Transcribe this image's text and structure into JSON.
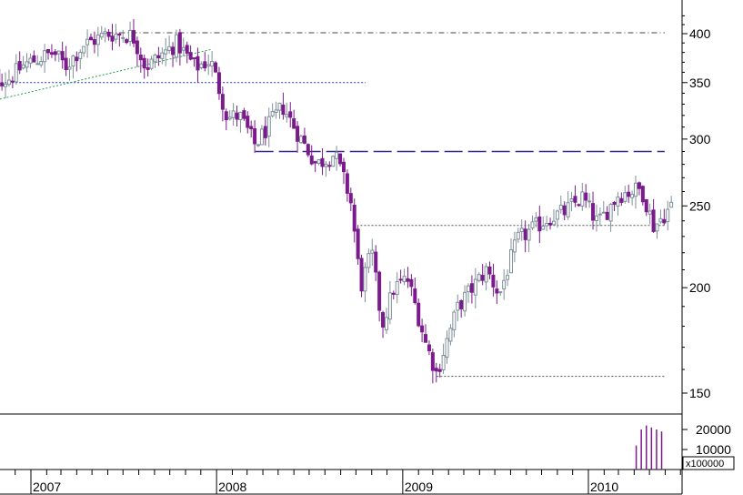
{
  "chart_data": {
    "type": "candlestick",
    "y_scale": "log",
    "ylim": [
      140,
      420
    ],
    "y_ticks": [
      150,
      200,
      250,
      300,
      350,
      400
    ],
    "x_range": [
      "2006-10",
      "2010-05"
    ],
    "x_labels": [
      {
        "date": "2007-01",
        "label": "2007"
      },
      {
        "date": "2008-01",
        "label": "2008"
      },
      {
        "date": "2009-01",
        "label": "2009"
      },
      {
        "date": "2010-01",
        "label": "2010"
      }
    ],
    "colors": {
      "up": "#7f8f9a",
      "down": "#7a1a8c"
    },
    "weekly_close_anchors": [
      {
        "date": "2006-10-01",
        "close": 360
      },
      {
        "date": "2006-11-15",
        "close": 352
      },
      {
        "date": "2006-12-20",
        "close": 368
      },
      {
        "date": "2007-02-15",
        "close": 380
      },
      {
        "date": "2007-03-10",
        "close": 366
      },
      {
        "date": "2007-04-15",
        "close": 388
      },
      {
        "date": "2007-06-01",
        "close": 400
      },
      {
        "date": "2007-07-20",
        "close": 398
      },
      {
        "date": "2007-08-15",
        "close": 365
      },
      {
        "date": "2007-10-15",
        "close": 390
      },
      {
        "date": "2007-11-20",
        "close": 365
      },
      {
        "date": "2007-12-20",
        "close": 372
      },
      {
        "date": "2008-01-22",
        "close": 318
      },
      {
        "date": "2008-02-15",
        "close": 320
      },
      {
        "date": "2008-03-17",
        "close": 295
      },
      {
        "date": "2008-05-10",
        "close": 328
      },
      {
        "date": "2008-06-15",
        "close": 300
      },
      {
        "date": "2008-07-15",
        "close": 280
      },
      {
        "date": "2008-08-20",
        "close": 288
      },
      {
        "date": "2008-09-20",
        "close": 255
      },
      {
        "date": "2008-10-10",
        "close": 200
      },
      {
        "date": "2008-11-01",
        "close": 220
      },
      {
        "date": "2008-11-21",
        "close": 180
      },
      {
        "date": "2008-12-15",
        "close": 200
      },
      {
        "date": "2009-01-10",
        "close": 205
      },
      {
        "date": "2009-02-15",
        "close": 172
      },
      {
        "date": "2009-03-09",
        "close": 158
      },
      {
        "date": "2009-04-20",
        "close": 190
      },
      {
        "date": "2009-06-15",
        "close": 210
      },
      {
        "date": "2009-07-10",
        "close": 196
      },
      {
        "date": "2009-08-15",
        "close": 228
      },
      {
        "date": "2009-10-15",
        "close": 242
      },
      {
        "date": "2009-11-15",
        "close": 246
      },
      {
        "date": "2009-12-20",
        "close": 256
      },
      {
        "date": "2010-01-20",
        "close": 238
      },
      {
        "date": "2010-03-01",
        "close": 258
      },
      {
        "date": "2010-04-15",
        "close": 262
      },
      {
        "date": "2010-05-10",
        "close": 236
      },
      {
        "date": "2010-06-01",
        "close": 245
      },
      {
        "date": "2010-06-20",
        "close": 252
      }
    ],
    "reference_lines": [
      {
        "name": "resistance-400",
        "style": "dashdot",
        "color": "#444444",
        "from": "2007-06-01",
        "to": "2010-05-31",
        "y_from": 401,
        "y_to": 401
      },
      {
        "name": "support-350",
        "style": "dotted",
        "color": "#2030c0",
        "from": "2006-10-20",
        "to": "2008-10-20",
        "y_from": 350,
        "y_to": 350
      },
      {
        "name": "trendline",
        "style": "dotted",
        "color": "#20a050",
        "from": "2006-09-20",
        "to": "2007-12-20",
        "y_from": 330,
        "y_to": 383
      },
      {
        "name": "level-290",
        "style": "longdash",
        "color": "#3a2a8a",
        "from": "2008-03-17",
        "to": "2010-05-31",
        "y_from": 290,
        "y_to": 290
      },
      {
        "name": "support-237",
        "style": "dotted",
        "color": "#555555",
        "from": "2008-10-10",
        "to": "2010-05-31",
        "y_from": 237,
        "y_to": 237
      },
      {
        "name": "low-157",
        "style": "dotted",
        "color": "#555555",
        "from": "2009-03-09",
        "to": "2010-05-31",
        "y_from": 157,
        "y_to": 157
      }
    ],
    "volume": {
      "ylim": [
        0,
        25000
      ],
      "y_ticks": [
        10000,
        20000
      ],
      "multiplier_label": "x100000",
      "bars": [
        {
          "date": "2010-04-05",
          "value": 12000
        },
        {
          "date": "2010-04-15",
          "value": 20000
        },
        {
          "date": "2010-04-25",
          "value": 22000
        },
        {
          "date": "2010-05-05",
          "value": 21000
        },
        {
          "date": "2010-05-15",
          "value": 20000
        },
        {
          "date": "2010-05-25",
          "value": 19000
        }
      ]
    }
  }
}
